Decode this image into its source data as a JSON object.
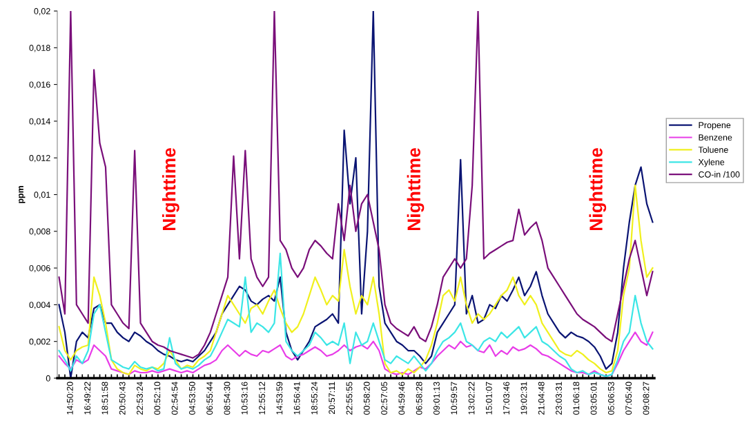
{
  "chart_data": {
    "type": "line",
    "ylabel": "ppm",
    "categories": [
      null,
      null,
      "14:50:20",
      null,
      null,
      "16:49:22",
      null,
      null,
      "18:51:58",
      null,
      null,
      "20:50:43",
      null,
      null,
      "22:53:24",
      null,
      null,
      "00:52:10",
      null,
      null,
      "02:54:54",
      null,
      null,
      "04:53:50",
      null,
      null,
      "06:55:44",
      null,
      null,
      "08:54:30",
      null,
      null,
      "10:53:16",
      null,
      null,
      "12:55:12",
      null,
      null,
      "14:53:59",
      null,
      null,
      "16:56:41",
      null,
      null,
      "18:55:24",
      null,
      null,
      "20:57:11",
      null,
      null,
      "22:55:55",
      null,
      null,
      "00:58:20",
      null,
      null,
      "02:57:05",
      null,
      null,
      "04:59:46",
      null,
      null,
      "06:58:28",
      null,
      null,
      "09:01:13",
      null,
      null,
      "10:59:57",
      null,
      null,
      "13:02:22",
      null,
      null,
      "15:01:07",
      null,
      null,
      "17:03:46",
      null,
      null,
      "19:02:31",
      null,
      null,
      "21:04:48",
      null,
      null,
      "23:03:31",
      null,
      null,
      "01:06:18",
      null,
      null,
      "03:05:01",
      null,
      null,
      "05:06:53",
      null,
      null,
      "07:05:40",
      null,
      null,
      "09:08:27",
      null
    ],
    "series": [
      {
        "name": "Propene",
        "color": "#0a1473",
        "values": [
          0.004,
          0.0025,
          0,
          0.002,
          0.0025,
          0.0022,
          0.0038,
          0.004,
          0.003,
          0.003,
          0.0025,
          0.0022,
          0.002,
          0.0025,
          0.0023,
          0.002,
          0.0018,
          0.0015,
          0.0013,
          0.0012,
          0.001,
          0.0009,
          0.001,
          0.0009,
          0.0012,
          0.0015,
          0.002,
          0.0025,
          0.0035,
          0.004,
          0.0045,
          0.005,
          0.0048,
          0.0042,
          0.004,
          0.0043,
          0.0045,
          0.0042,
          0.0055,
          0.0025,
          0.0015,
          0.001,
          0.0015,
          0.002,
          0.0028,
          0.003,
          0.0032,
          0.0035,
          0.003,
          0.0135,
          0.0095,
          0.012,
          0.0035,
          0.008,
          0.02,
          0.005,
          0.003,
          0.0025,
          0.002,
          0.0018,
          0.0015,
          0.0015,
          0.0012,
          0.0008,
          0.0012,
          0.0025,
          0.003,
          0.0035,
          0.004,
          0.0119,
          0.0035,
          0.0045,
          0.003,
          0.0032,
          0.004,
          0.0038,
          0.0045,
          0.0042,
          0.0048,
          0.0055,
          0.0045,
          0.005,
          0.0058,
          0.0045,
          0.0035,
          0.003,
          0.0025,
          0.0022,
          0.0025,
          0.0023,
          0.0022,
          0.002,
          0.0017,
          0.0012,
          0.0005,
          0.0008,
          0.0025,
          0.006,
          0.0085,
          0.0105,
          0.0115,
          0.0095,
          0.0085
        ]
      },
      {
        "name": "Benzene",
        "color": "#e83ce8",
        "values": [
          0.0012,
          0.0008,
          0.0005,
          0.001,
          0.0008,
          0.001,
          0.0018,
          0.0015,
          0.0012,
          0.0005,
          0.0004,
          0.0003,
          0.0002,
          0.0004,
          0.0003,
          0.0003,
          0.0004,
          0.0003,
          0.0004,
          0.0005,
          0.0004,
          0.0003,
          0.0004,
          0.0003,
          0.0005,
          0.0007,
          0.0008,
          0.001,
          0.0015,
          0.0018,
          0.0015,
          0.0012,
          0.0015,
          0.0013,
          0.0012,
          0.0015,
          0.0014,
          0.0016,
          0.0018,
          0.0012,
          0.001,
          0.0012,
          0.0013,
          0.0015,
          0.0017,
          0.0015,
          0.0012,
          0.0013,
          0.0015,
          0.0018,
          0.0015,
          0.0017,
          0.0018,
          0.0016,
          0.002,
          0.0015,
          0.0005,
          0.0003,
          0.0002,
          0.0003,
          0.0002,
          0.0004,
          0.0006,
          0.0005,
          0.0008,
          0.0012,
          0.0015,
          0.0018,
          0.0016,
          0.002,
          0.0017,
          0.0018,
          0.0015,
          0.0014,
          0.0018,
          0.0012,
          0.0015,
          0.0013,
          0.0017,
          0.0015,
          0.0016,
          0.0018,
          0.0016,
          0.0013,
          0.0012,
          0.001,
          0.0008,
          0.0006,
          0.0004,
          0.0003,
          0.0003,
          0.0002,
          0.0004,
          0.0002,
          0.0001,
          0.0002,
          0.0008,
          0.0015,
          0.002,
          0.0025,
          0.002,
          0.0018,
          0.0025
        ]
      },
      {
        "name": "Toluene",
        "color": "#f0f01e",
        "values": [
          0.0028,
          0.0015,
          0.001,
          0.0015,
          0.0017,
          0.0018,
          0.0055,
          0.0045,
          0.003,
          0.001,
          0.0005,
          0.0003,
          0.0002,
          0.0007,
          0.0005,
          0.0004,
          0.0006,
          0.0005,
          0.0008,
          0.0015,
          0.001,
          0.0005,
          0.0007,
          0.0006,
          0.001,
          0.0012,
          0.0015,
          0.0025,
          0.0035,
          0.0045,
          0.004,
          0.0035,
          0.003,
          0.0038,
          0.004,
          0.0035,
          0.0042,
          0.0048,
          0.0038,
          0.003,
          0.0025,
          0.0028,
          0.0035,
          0.0045,
          0.0055,
          0.0048,
          0.004,
          0.0045,
          0.0042,
          0.007,
          0.005,
          0.0035,
          0.0045,
          0.004,
          0.0055,
          0.0035,
          0.0008,
          0.0003,
          0.0004,
          0.0002,
          0.0005,
          0.0003,
          0.0006,
          0.001,
          0.0018,
          0.003,
          0.0045,
          0.0048,
          0.0042,
          0.0055,
          0.004,
          0.003,
          0.0035,
          0.0032,
          0.0035,
          0.004,
          0.0045,
          0.0048,
          0.0055,
          0.0045,
          0.004,
          0.0045,
          0.004,
          0.003,
          0.0025,
          0.002,
          0.0015,
          0.0013,
          0.0012,
          0.0015,
          0.0013,
          0.001,
          0.0008,
          0.0005,
          0.0003,
          0.0004,
          0.0015,
          0.0045,
          0.006,
          0.0105,
          0.0075,
          0.0055,
          0.006
        ]
      },
      {
        "name": "Xylene",
        "color": "#3ce6e6",
        "values": [
          0.0015,
          0.001,
          0.0004,
          0.0012,
          0.0008,
          0.0015,
          0.0035,
          0.004,
          0.0025,
          0.001,
          0.0008,
          0.0006,
          0.0005,
          0.0009,
          0.0006,
          0.0005,
          0.0006,
          0.0004,
          0.0005,
          0.0022,
          0.0008,
          0.0005,
          0.0006,
          0.0005,
          0.0007,
          0.001,
          0.0012,
          0.0018,
          0.0025,
          0.0032,
          0.003,
          0.0028,
          0.0055,
          0.0025,
          0.003,
          0.0028,
          0.0025,
          0.003,
          0.0068,
          0.002,
          0.0015,
          0.0012,
          0.0015,
          0.0018,
          0.0025,
          0.0022,
          0.0018,
          0.002,
          0.0018,
          0.003,
          0.0008,
          0.0025,
          0.0018,
          0.002,
          0.003,
          0.002,
          0.001,
          0.0008,
          0.0012,
          0.001,
          0.0008,
          0.0012,
          0.0008,
          0.0004,
          0.0008,
          0.0015,
          0.002,
          0.0022,
          0.0025,
          0.003,
          0.002,
          0.0018,
          0.0015,
          0.002,
          0.0022,
          0.002,
          0.0025,
          0.0022,
          0.0025,
          0.0028,
          0.0022,
          0.0025,
          0.0028,
          0.002,
          0.0018,
          0.0015,
          0.0012,
          0.001,
          0.0005,
          0.0003,
          0.0004,
          0.0002,
          0.0003,
          0.0002,
          0.0001,
          0.0002,
          0.001,
          0.002,
          0.0025,
          0.0045,
          0.003,
          0.002,
          0.0016
        ]
      },
      {
        "name": "CO-in /100",
        "color": "#7a0f7a",
        "values": [
          0.0055,
          0.0035,
          0.02,
          0.004,
          0.0035,
          0.003,
          0.0168,
          0.0128,
          0.0115,
          0.004,
          0.0035,
          0.003,
          0.0027,
          0.0124,
          0.003,
          0.0025,
          0.002,
          0.0018,
          0.0017,
          0.0015,
          0.0014,
          0.0013,
          0.0012,
          0.0011,
          0.0013,
          0.0018,
          0.0025,
          0.0035,
          0.0045,
          0.0055,
          0.0121,
          0.0065,
          0.0124,
          0.0065,
          0.0055,
          0.005,
          0.0055,
          0.02,
          0.0075,
          0.007,
          0.006,
          0.0055,
          0.006,
          0.007,
          0.0075,
          0.0072,
          0.0068,
          0.0065,
          0.0095,
          0.0075,
          0.0105,
          0.008,
          0.0095,
          0.01,
          0.0085,
          0.007,
          0.004,
          0.003,
          0.0027,
          0.0025,
          0.0023,
          0.0028,
          0.0022,
          0.002,
          0.0028,
          0.004,
          0.0055,
          0.006,
          0.0065,
          0.006,
          0.0065,
          0.0105,
          0.02,
          0.0065,
          0.0068,
          0.007,
          0.0072,
          0.0074,
          0.0075,
          0.0092,
          0.0078,
          0.0082,
          0.0085,
          0.0075,
          0.006,
          0.0055,
          0.005,
          0.0045,
          0.004,
          0.0035,
          0.0032,
          0.003,
          0.0028,
          0.0025,
          0.0022,
          0.002,
          0.0035,
          0.005,
          0.0065,
          0.0075,
          0.006,
          0.0045,
          0.0058
        ]
      }
    ],
    "ylim": [
      0,
      0.02
    ],
    "yticks": [
      {
        "value": 0,
        "label": "0"
      },
      {
        "value": 0.002,
        "label": "0,002"
      },
      {
        "value": 0.004,
        "label": "0,004"
      },
      {
        "value": 0.006,
        "label": "0,006"
      },
      {
        "value": 0.008,
        "label": "0,008"
      },
      {
        "value": 0.01,
        "label": "0,01"
      },
      {
        "value": 0.012,
        "label": "0,012"
      },
      {
        "value": 0.014,
        "label": "0,014"
      },
      {
        "value": 0.016,
        "label": "0,016"
      },
      {
        "value": 0.018,
        "label": "0,018"
      },
      {
        "value": 0.02,
        "label": "0,02"
      }
    ],
    "annotations": [
      "Nighttime",
      "Nighttime",
      "Nighttime"
    ],
    "grid": false,
    "legend": "right",
    "marker": "none",
    "line_style": "solid"
  }
}
